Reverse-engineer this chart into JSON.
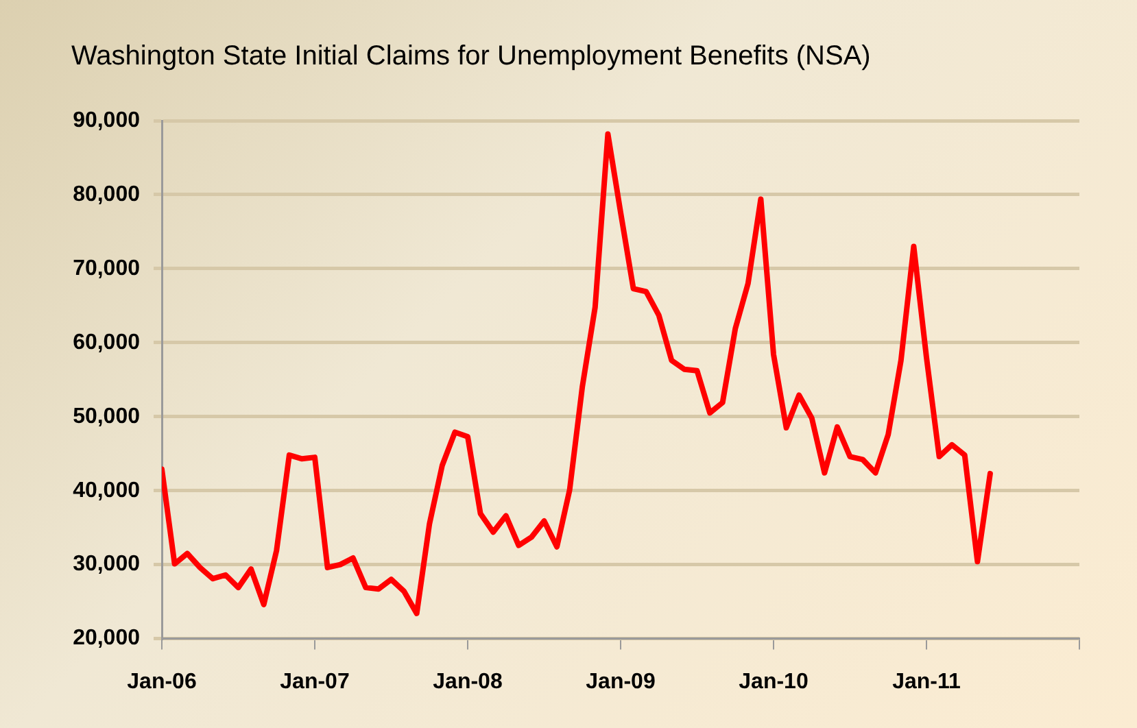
{
  "chart_data": {
    "type": "line",
    "title": "Washington State Initial Claims for Unemployment Benefits (NSA)",
    "x": [
      "2006-01",
      "2006-02",
      "2006-03",
      "2006-04",
      "2006-05",
      "2006-06",
      "2006-07",
      "2006-08",
      "2006-09",
      "2006-10",
      "2006-11",
      "2006-12",
      "2007-01",
      "2007-02",
      "2007-03",
      "2007-04",
      "2007-05",
      "2007-06",
      "2007-07",
      "2007-08",
      "2007-09",
      "2007-10",
      "2007-11",
      "2007-12",
      "2008-01",
      "2008-02",
      "2008-03",
      "2008-04",
      "2008-05",
      "2008-06",
      "2008-07",
      "2008-08",
      "2008-09",
      "2008-10",
      "2008-11",
      "2008-12",
      "2009-01",
      "2009-02",
      "2009-03",
      "2009-04",
      "2009-05",
      "2009-06",
      "2009-07",
      "2009-08",
      "2009-09",
      "2009-10",
      "2009-11",
      "2009-12",
      "2010-01",
      "2010-02",
      "2010-03",
      "2010-04",
      "2010-05",
      "2010-06",
      "2010-07",
      "2010-08",
      "2010-09",
      "2010-10",
      "2010-11",
      "2010-12",
      "2011-01",
      "2011-02",
      "2011-03",
      "2011-04",
      "2011-05",
      "2011-06"
    ],
    "series": [
      {
        "color": "#ff0000",
        "values": [
          42900,
          30100,
          31500,
          29600,
          28100,
          28600,
          26900,
          29400,
          24600,
          31900,
          44800,
          44300,
          44500,
          29600,
          30000,
          30900,
          26900,
          26700,
          28000,
          26400,
          23400,
          35500,
          43400,
          47900,
          47300,
          36900,
          34400,
          36600,
          32600,
          33700,
          35900,
          32400,
          40100,
          54100,
          64800,
          88200,
          77600,
          67300,
          66900,
          63700,
          57600,
          56400,
          56200,
          50500,
          51900,
          61900,
          68000,
          79400,
          58400,
          48500,
          52900,
          49800,
          42400,
          48600,
          44600,
          44200,
          42400,
          47600,
          57600,
          73000,
          58000,
          44600,
          46200,
          44800,
          30400,
          42300
        ]
      }
    ],
    "xlim": [
      "2006-01",
      "2012-01"
    ],
    "xticks": [
      {
        "value": "2006-01",
        "label": "Jan-06"
      },
      {
        "value": "2007-01",
        "label": "Jan-07"
      },
      {
        "value": "2008-01",
        "label": "Jan-08"
      },
      {
        "value": "2009-01",
        "label": "Jan-09"
      },
      {
        "value": "2010-01",
        "label": "Jan-10"
      },
      {
        "value": "2011-01",
        "label": "Jan-11"
      },
      {
        "value": "2012-01",
        "label": null
      }
    ],
    "ylim": [
      20000,
      90000
    ],
    "yticks": [
      {
        "value": 20000,
        "label": "20,000"
      },
      {
        "value": 30000,
        "label": "30,000"
      },
      {
        "value": 40000,
        "label": "40,000"
      },
      {
        "value": 50000,
        "label": "50,000"
      },
      {
        "value": 60000,
        "label": "60,000"
      },
      {
        "value": 70000,
        "label": "70,000"
      },
      {
        "value": 80000,
        "label": "80,000"
      },
      {
        "value": 90000,
        "label": "90,000"
      }
    ],
    "grid": "y",
    "legend": false,
    "marker": "none",
    "line_style": "solid"
  }
}
